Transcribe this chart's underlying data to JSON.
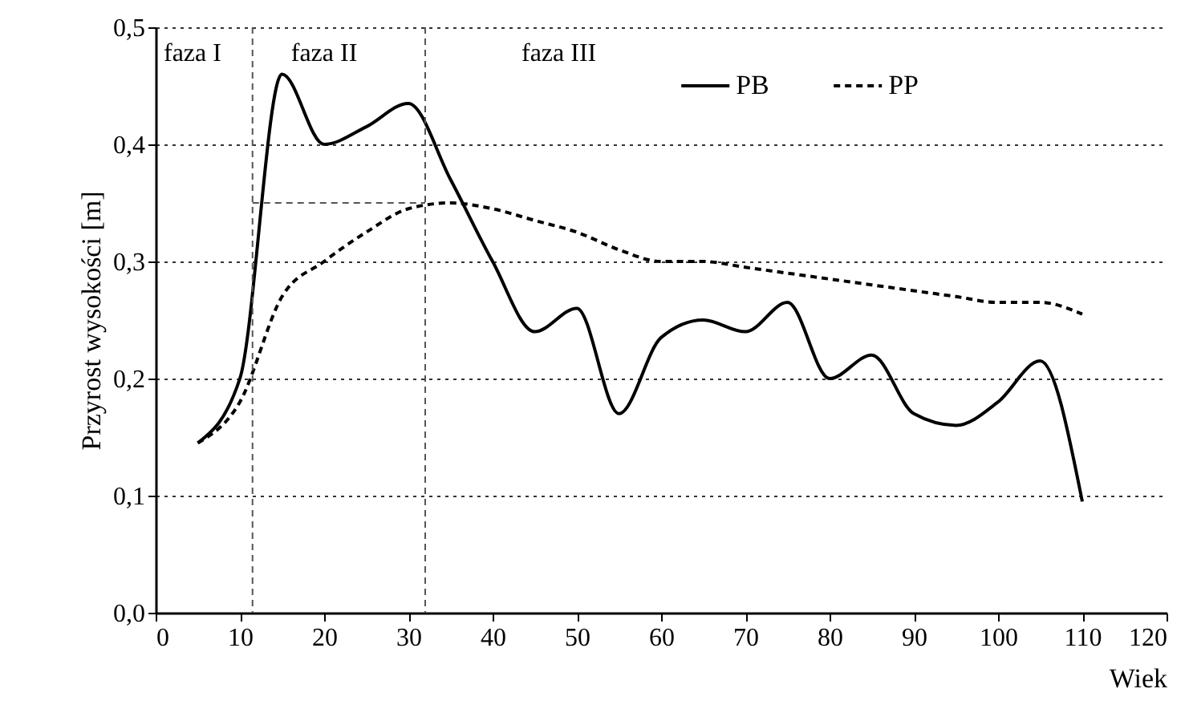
{
  "chart_data": {
    "type": "line",
    "xlabel": "Wiek",
    "ylabel": "Przyrost wysokości [m]",
    "x": [
      5,
      10,
      15,
      20,
      25,
      30,
      35,
      40,
      45,
      50,
      55,
      60,
      65,
      70,
      75,
      80,
      85,
      90,
      95,
      100,
      105,
      110
    ],
    "series": [
      {
        "name": "PB",
        "color": "#000000",
        "line_style": "solid",
        "values": [
          0.145,
          0.2,
          0.46,
          0.4,
          0.415,
          0.435,
          0.37,
          0.3,
          0.24,
          0.26,
          0.17,
          0.235,
          0.25,
          0.24,
          0.265,
          0.2,
          0.22,
          0.17,
          0.16,
          0.18,
          0.215,
          0.095
        ]
      },
      {
        "name": "PP",
        "color": "#000000",
        "line_style": "dashed",
        "values": [
          0.145,
          0.18,
          0.27,
          0.3,
          0.325,
          0.345,
          0.35,
          0.345,
          0.335,
          0.325,
          0.31,
          0.3,
          0.3,
          0.295,
          0.29,
          0.285,
          0.28,
          0.275,
          0.27,
          0.265,
          0.265,
          0.255
        ]
      },
      {
        "type": "line",
        "color": "#555555",
        "line_style": "dashed",
        "x": [
          11.5,
          32
        ],
        "values": [
          0.35,
          0.35
        ]
      }
    ],
    "ref_lines": [
      {
        "axis": "x",
        "value": 11.5,
        "color": "#555555",
        "line_style": "dashed"
      },
      {
        "axis": "x",
        "value": 32,
        "color": "#555555",
        "line_style": "dashed"
      }
    ],
    "annotations": [
      "faza I",
      "faza II",
      "faza III"
    ],
    "xlim": [
      0,
      120
    ],
    "xticks": [
      0,
      10,
      20,
      30,
      40,
      50,
      60,
      70,
      80,
      90,
      100,
      110,
      120
    ],
    "ylim": [
      0,
      0.5
    ],
    "yticks": [
      {
        "value": 0,
        "label": "0,0"
      },
      {
        "value": 0.1,
        "label": "0,1"
      },
      {
        "value": 0.2,
        "label": "0,2"
      },
      {
        "value": 0.3,
        "label": "0,3"
      },
      {
        "value": 0.4,
        "label": "0,4"
      },
      {
        "value": 0.5,
        "label": "0,5"
      }
    ],
    "grid": "y",
    "legend": "top right"
  }
}
